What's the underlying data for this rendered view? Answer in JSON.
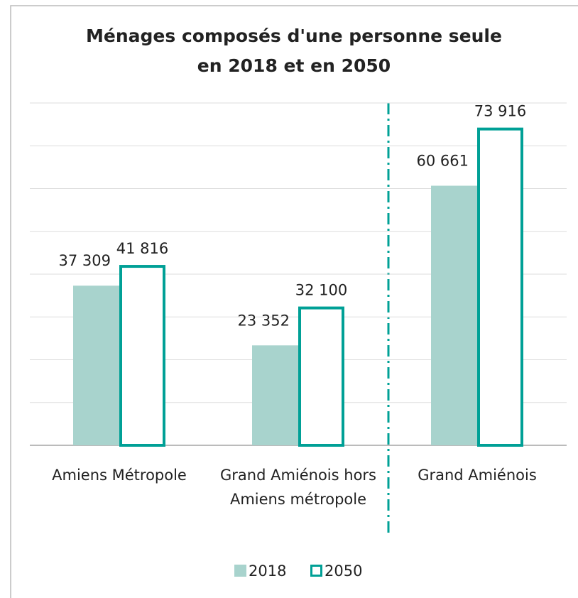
{
  "chart_data": {
    "type": "bar",
    "title": [
      "Ménages composés d'une personne seule",
      "en 2018 et en 2050"
    ],
    "categories": [
      "Amiens Métropole",
      "Grand Amiénois hors Amiens métropole",
      "Grand Amiénois"
    ],
    "series": [
      {
        "name": "2018",
        "color": "#a8d3cd",
        "values": [
          37309,
          23352,
          60661
        ],
        "value_labels": [
          "37 309",
          "23 352",
          "60 661"
        ]
      },
      {
        "name": "2050",
        "color": "#00a096",
        "values": [
          41816,
          32100,
          73916
        ],
        "value_labels": [
          "41 816",
          "32 100",
          "73 916"
        ]
      }
    ],
    "ylim": [
      0,
      80000
    ],
    "yticks": [
      0,
      10000,
      20000,
      30000,
      40000,
      50000,
      60000,
      70000,
      80000
    ],
    "grid": true
  }
}
